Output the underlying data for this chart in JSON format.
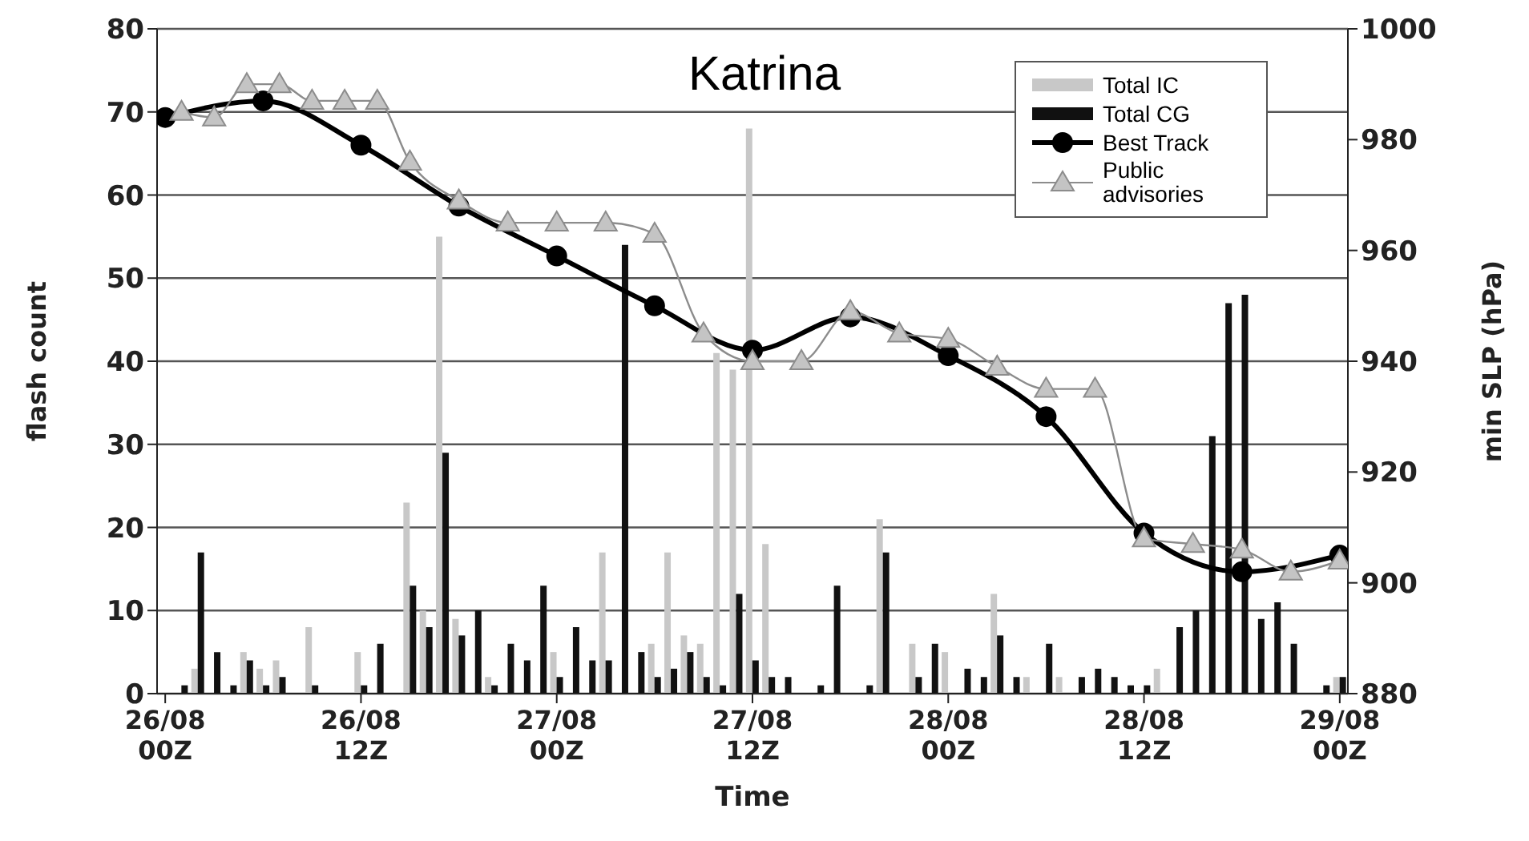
{
  "chart_data": {
    "type": "bar",
    "title": "Katrina",
    "xlabel": "Time",
    "ylabel": "flash count",
    "y2label": "min SLP (hPa)",
    "categories": [
      "26/08\n00Z",
      null,
      null,
      null,
      null,
      null,
      null,
      null,
      null,
      null,
      null,
      null,
      "26/08\n12Z",
      null,
      null,
      null,
      null,
      null,
      null,
      null,
      null,
      null,
      null,
      null,
      "27/08\n00Z",
      null,
      null,
      null,
      null,
      null,
      null,
      null,
      null,
      null,
      null,
      null,
      "27/08\n12Z",
      null,
      null,
      null,
      null,
      null,
      null,
      null,
      null,
      null,
      null,
      null,
      "28/08\n00Z",
      null,
      null,
      null,
      null,
      null,
      null,
      null,
      null,
      null,
      null,
      null,
      "28/08\n12Z",
      null,
      null,
      null,
      null,
      null,
      null,
      null,
      null,
      null,
      null,
      null,
      "29/08\n00Z"
    ],
    "ylim": [
      0,
      80
    ],
    "yticks": [
      0,
      10,
      20,
      30,
      40,
      50,
      60,
      70,
      80
    ],
    "y2lim": [
      880,
      1000
    ],
    "y2ticks": [
      880,
      900,
      920,
      940,
      960,
      980,
      1000
    ],
    "grid": "y",
    "legend": "top right",
    "series": [
      {
        "name": "Total IC",
        "color": "#c8c8c8",
        "values": [
          0,
          0,
          3,
          0,
          0,
          5,
          3,
          4,
          0,
          8,
          0,
          0,
          5,
          0,
          0,
          23,
          10,
          55,
          9,
          0,
          2,
          0,
          0,
          0,
          5,
          0,
          0,
          17,
          0,
          0,
          6,
          17,
          7,
          6,
          41,
          39,
          68,
          18,
          0,
          0,
          0,
          0,
          0,
          0,
          21,
          0,
          6,
          0,
          5,
          0,
          0,
          12,
          0,
          2,
          0,
          2,
          0,
          0,
          0,
          0,
          0,
          3,
          0,
          0,
          0,
          0,
          0,
          0,
          0,
          0,
          0,
          0,
          2
        ]
      },
      {
        "name": "Total CG",
        "color": "#111111",
        "values": [
          0,
          1,
          17,
          5,
          1,
          4,
          1,
          2,
          0,
          1,
          0,
          0,
          1,
          6,
          0,
          13,
          8,
          29,
          7,
          10,
          1,
          6,
          4,
          13,
          2,
          8,
          4,
          4,
          54,
          5,
          2,
          3,
          5,
          2,
          1,
          12,
          4,
          2,
          2,
          0,
          1,
          13,
          0,
          1,
          17,
          0,
          2,
          6,
          0,
          3,
          2,
          7,
          2,
          0,
          6,
          0,
          2,
          3,
          2,
          1,
          1,
          0,
          8,
          10,
          31,
          47,
          48,
          9,
          11,
          6,
          0,
          1,
          2
        ]
      },
      {
        "name": "Best Track",
        "type": "line",
        "axis": "y2",
        "marker": "circle",
        "color": "#000000",
        "values": [
          984,
          null,
          null,
          null,
          null,
          null,
          987,
          null,
          null,
          null,
          null,
          null,
          979,
          null,
          null,
          null,
          null,
          null,
          968,
          null,
          null,
          null,
          null,
          null,
          959,
          null,
          null,
          null,
          null,
          null,
          950,
          null,
          null,
          null,
          null,
          null,
          942,
          null,
          null,
          null,
          null,
          null,
          948,
          null,
          null,
          null,
          null,
          null,
          941,
          null,
          null,
          null,
          null,
          null,
          930,
          null,
          null,
          null,
          null,
          null,
          909,
          null,
          null,
          null,
          null,
          null,
          902,
          null,
          null,
          null,
          null,
          null,
          905
        ]
      },
      {
        "name": "Public advisories",
        "type": "line",
        "axis": "y2",
        "marker": "triangle",
        "color": "#8c8c8c",
        "values": [
          null,
          985,
          null,
          984,
          null,
          990,
          null,
          990,
          null,
          987,
          null,
          987,
          null,
          987,
          null,
          976,
          null,
          null,
          969,
          null,
          null,
          965,
          null,
          null,
          965,
          null,
          null,
          965,
          null,
          null,
          963,
          null,
          null,
          945,
          null,
          null,
          940,
          null,
          null,
          940,
          null,
          null,
          949,
          null,
          null,
          945,
          null,
          null,
          944,
          null,
          null,
          939,
          null,
          null,
          935,
          null,
          null,
          935,
          null,
          null,
          908,
          null,
          null,
          907,
          null,
          null,
          906,
          null,
          null,
          902,
          null,
          null,
          904
        ]
      }
    ]
  }
}
